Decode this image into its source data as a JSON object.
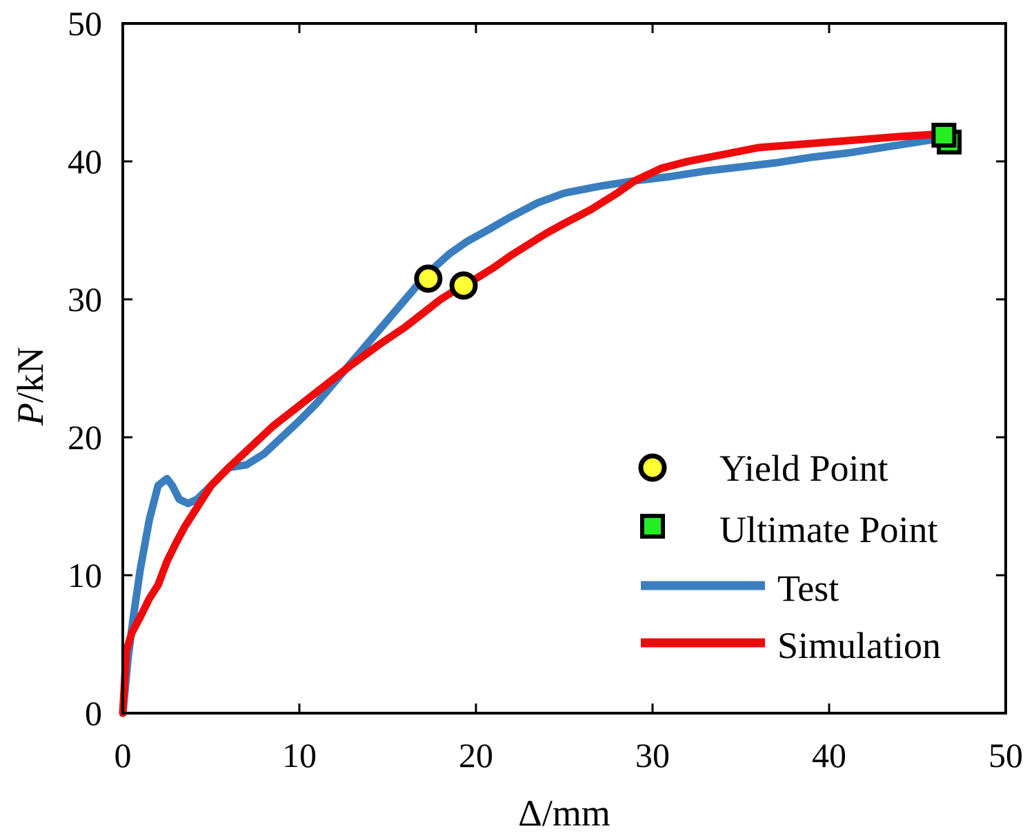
{
  "chart_data": {
    "type": "line",
    "title": "",
    "xlabel_symbol": "Δ",
    "xlabel_unit": "/mm",
    "ylabel_symbol": "P",
    "ylabel_unit": "/kN",
    "xlim": [
      0,
      50
    ],
    "ylim": [
      0,
      50
    ],
    "xticks": [
      0,
      10,
      20,
      30,
      40,
      50
    ],
    "yticks": [
      0,
      10,
      20,
      30,
      40,
      50
    ],
    "grid": false,
    "legend_position": "bottom-right",
    "series": [
      {
        "name": "Test",
        "color": "#3a7ebf",
        "x": [
          0,
          0.3,
          0.6,
          1.0,
          1.5,
          2.0,
          2.5,
          2.8,
          3.2,
          3.7,
          4.2,
          5.0,
          6.0,
          7.0,
          8.0,
          9.0,
          10.0,
          11.0,
          12.0,
          13.0,
          14.0,
          15.0,
          16.0,
          17.0,
          17.8,
          18.5,
          19.5,
          20.5,
          22.0,
          23.5,
          25.0,
          27.0,
          29.0,
          31.0,
          33.0,
          35.0,
          37.0,
          39.0,
          41.0,
          43.0,
          45.0,
          46.5
        ],
        "values": [
          0,
          4,
          7,
          10.5,
          14,
          16.5,
          17,
          16.5,
          15.5,
          15.2,
          15.5,
          16.5,
          17.8,
          18,
          18.8,
          20,
          21.2,
          22.5,
          24,
          25.5,
          27,
          28.5,
          30,
          31.5,
          32.5,
          33.3,
          34.2,
          34.9,
          36,
          37,
          37.7,
          38.2,
          38.6,
          38.9,
          39.3,
          39.6,
          39.9,
          40.3,
          40.6,
          41,
          41.4,
          41.7
        ]
      },
      {
        "name": "Simulation",
        "color": "#ee0b0b",
        "x": [
          0,
          0.2,
          0.5,
          1.0,
          1.5,
          2.0,
          2.5,
          3.0,
          3.5,
          4.0,
          5.0,
          6.0,
          7.0,
          8.5,
          10.0,
          11.5,
          13.0,
          14.5,
          16.0,
          17.0,
          18.0,
          19.0,
          20.0,
          21.0,
          22.0,
          23.0,
          24.0,
          25.0,
          26.5,
          28.0,
          29.0,
          30.5,
          32.0,
          34.0,
          36.0,
          38.0,
          40.0,
          42.0,
          44.0,
          46.5
        ],
        "values": [
          0,
          4.5,
          5.8,
          7,
          8.3,
          9.3,
          11,
          12.3,
          13.5,
          14.5,
          16.5,
          17.8,
          19,
          20.8,
          22.3,
          23.8,
          25.3,
          26.7,
          28,
          29,
          30,
          30.8,
          31.5,
          32.3,
          33.2,
          34,
          34.8,
          35.5,
          36.5,
          37.7,
          38.6,
          39.5,
          40,
          40.5,
          41,
          41.2,
          41.4,
          41.6,
          41.8,
          42
        ]
      }
    ],
    "markers": [
      {
        "type": "Yield Point",
        "shape": "circle",
        "color": "#ffff33",
        "points": [
          {
            "x": 17.3,
            "y": 31.5
          },
          {
            "x": 19.3,
            "y": 31.0
          }
        ]
      },
      {
        "type": "Ultimate Point",
        "shape": "square",
        "color": "#22ee22",
        "points": [
          {
            "x": 46.8,
            "y": 41.4
          },
          {
            "x": 46.5,
            "y": 41.9
          }
        ]
      }
    ],
    "legend": [
      {
        "label": "Yield Point",
        "kind": "circle"
      },
      {
        "label": "Ultimate Point",
        "kind": "square"
      },
      {
        "label": "Test",
        "kind": "line",
        "series": 0
      },
      {
        "label": "Simulation",
        "kind": "line",
        "series": 1
      }
    ]
  }
}
